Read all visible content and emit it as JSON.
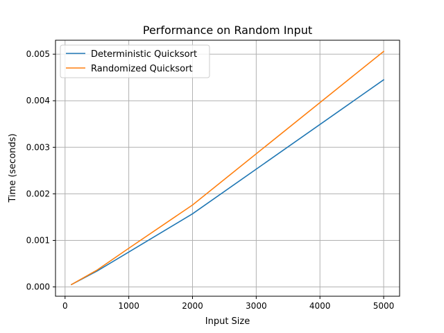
{
  "chart_data": {
    "type": "line",
    "title": "Performance on Random Input",
    "xlabel": "Input Size",
    "ylabel": "Time (seconds)",
    "xlim": [
      -150,
      5250
    ],
    "ylim": [
      -0.0002,
      0.0053
    ],
    "xticks": [
      0,
      1000,
      2000,
      3000,
      4000,
      5000
    ],
    "xtick_labels": [
      "0",
      "1000",
      "2000",
      "3000",
      "4000",
      "5000"
    ],
    "yticks": [
      0.0,
      0.001,
      0.002,
      0.003,
      0.004,
      0.005
    ],
    "ytick_labels": [
      "0.000",
      "0.001",
      "0.002",
      "0.003",
      "0.004",
      "0.005"
    ],
    "grid": true,
    "legend_position": "top-left",
    "series": [
      {
        "name": "Deterministic Quicksort",
        "color": "#1f77b4",
        "x": [
          100,
          500,
          1000,
          2000,
          5000
        ],
        "y": [
          5e-05,
          0.00034,
          0.00075,
          0.00157,
          0.00445
        ]
      },
      {
        "name": "Randomized Quicksort",
        "color": "#ff7f0e",
        "x": [
          100,
          500,
          1000,
          2000,
          5000
        ],
        "y": [
          5e-05,
          0.00036,
          0.00083,
          0.00176,
          0.00506
        ]
      }
    ]
  }
}
